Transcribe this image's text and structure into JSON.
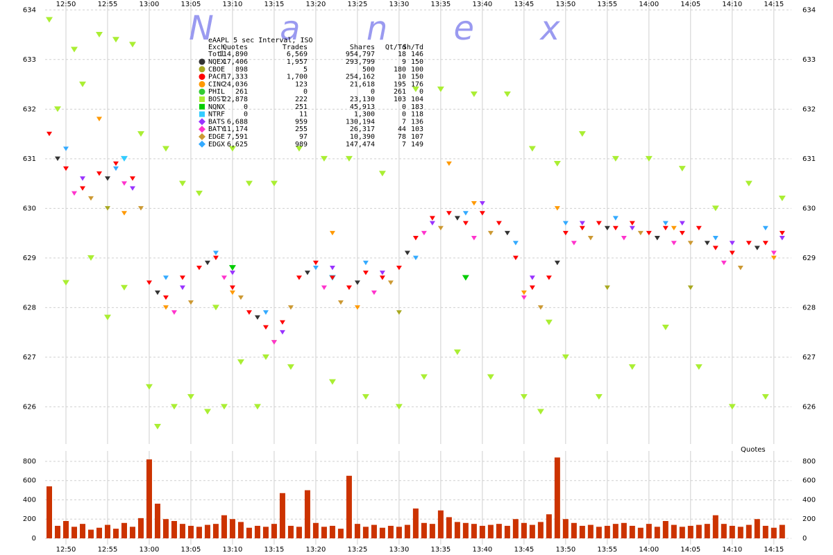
{
  "chart_data": [
    {
      "type": "scatter",
      "title": "eAAPL 5 sec Interval, ISO",
      "watermark": "N a n e x",
      "xlim": [
        767.5,
        857.1
      ],
      "xticks": [
        {
          "value": 770,
          "label": "12:50"
        },
        {
          "value": 775,
          "label": "12:55"
        },
        {
          "value": 780,
          "label": "13:00"
        },
        {
          "value": 785,
          "label": "13:05"
        },
        {
          "value": 790,
          "label": "13:10"
        },
        {
          "value": 795,
          "label": "13:15"
        },
        {
          "value": 800,
          "label": "13:20"
        },
        {
          "value": 805,
          "label": "13:25"
        },
        {
          "value": 810,
          "label": "13:30"
        },
        {
          "value": 815,
          "label": "13:35"
        },
        {
          "value": 820,
          "label": "13:40"
        },
        {
          "value": 825,
          "label": "13:45"
        },
        {
          "value": 830,
          "label": "13:50"
        },
        {
          "value": 835,
          "label": "13:55"
        },
        {
          "value": 840,
          "label": "14:00"
        },
        {
          "value": 845,
          "label": "14:05"
        },
        {
          "value": 850,
          "label": "14:10"
        },
        {
          "value": 855,
          "label": "14:15"
        }
      ],
      "ylim": [
        625.25,
        634.2
      ],
      "yticks": [
        626,
        627,
        628,
        629,
        630,
        631,
        632,
        633,
        634
      ],
      "grid": true,
      "table_header": [
        "Exch",
        "Quotes",
        "Trades",
        "Shares",
        "Qt/Td",
        "Sh/Td"
      ],
      "table_total": [
        "Totl",
        "114,890",
        "6,569",
        "954,797",
        "18",
        "146"
      ],
      "series": [
        {
          "name": "NQEX",
          "color": "#333333",
          "marker": "circle",
          "stats": [
            "17,406",
            "1,957",
            "293,799",
            "9",
            "150"
          ],
          "x": [
            769,
            775,
            781,
            787,
            793,
            799,
            805,
            811,
            817,
            823,
            829,
            835,
            841,
            847,
            853
          ],
          "values": [
            631.0,
            630.6,
            628.3,
            628.9,
            627.8,
            628.7,
            628.5,
            629.1,
            629.8,
            629.5,
            628.9,
            629.6,
            629.4,
            629.3,
            629.2
          ]
        },
        {
          "name": "CBOE",
          "color": "#a8a820",
          "marker": "circle",
          "stats": [
            "898",
            "5",
            "500",
            "180",
            "100"
          ],
          "x": [
            775,
            795,
            810,
            835,
            845
          ],
          "values": [
            630.0,
            627.3,
            627.9,
            628.4,
            628.4
          ]
        },
        {
          "name": "PACF",
          "color": "#ff0000",
          "marker": "circle",
          "stats": [
            "17,333",
            "1,700",
            "254,162",
            "10",
            "150"
          ],
          "x": [
            768,
            770,
            772,
            774,
            776,
            778,
            780,
            782,
            784,
            786,
            788,
            790,
            792,
            794,
            796,
            798,
            800,
            802,
            804,
            806,
            808,
            810,
            812,
            814,
            816,
            818,
            820,
            822,
            824,
            826,
            828,
            830,
            832,
            834,
            836,
            838,
            840,
            842,
            844,
            846,
            848,
            850,
            852,
            854,
            856
          ],
          "values": [
            631.5,
            630.8,
            630.4,
            630.7,
            630.9,
            630.6,
            628.5,
            628.2,
            628.6,
            628.8,
            629.0,
            628.4,
            627.9,
            627.6,
            627.7,
            628.6,
            628.9,
            628.6,
            628.4,
            628.7,
            628.6,
            628.8,
            629.4,
            629.8,
            629.9,
            629.7,
            629.9,
            629.7,
            629.0,
            628.4,
            628.6,
            629.5,
            629.6,
            629.7,
            629.6,
            629.7,
            629.5,
            629.6,
            629.5,
            629.6,
            629.2,
            629.1,
            629.3,
            629.3,
            629.5
          ]
        },
        {
          "name": "CINC",
          "color": "#ff9900",
          "marker": "circle",
          "stats": [
            "24,036",
            "123",
            "21,618",
            "195",
            "176"
          ],
          "x": [
            774,
            777,
            782,
            790,
            802,
            805,
            816,
            819,
            825,
            829,
            843,
            855
          ],
          "values": [
            631.8,
            629.9,
            628.0,
            628.3,
            629.5,
            628.0,
            630.9,
            630.1,
            628.3,
            630.0,
            629.6,
            629.0
          ]
        },
        {
          "name": "PHIL",
          "color": "#33cc33",
          "marker": "circle",
          "stats": [
            "261",
            "0",
            "0",
            "261",
            "0"
          ],
          "x": [],
          "values": []
        },
        {
          "name": "BOST",
          "color": "#aaee33",
          "marker": "square",
          "stats": [
            "22,878",
            "222",
            "23,130",
            "103",
            "104"
          ],
          "x": [
            768,
            769,
            770,
            771,
            772,
            773,
            774,
            775,
            776,
            777,
            778,
            779,
            780,
            781,
            782,
            783,
            784,
            785,
            786,
            787,
            788,
            789,
            790,
            791,
            792,
            793,
            794,
            795,
            797,
            798,
            801,
            802,
            804,
            806,
            808,
            810,
            812,
            813,
            815,
            817,
            819,
            821,
            823,
            825,
            826,
            827,
            828,
            829,
            830,
            832,
            834,
            836,
            838,
            840,
            842,
            844,
            846,
            848,
            850,
            852,
            854,
            856
          ],
          "values": [
            633.8,
            632.0,
            628.5,
            633.2,
            632.5,
            629.0,
            633.5,
            627.8,
            633.4,
            628.4,
            633.3,
            631.5,
            626.4,
            625.6,
            631.2,
            626.0,
            630.5,
            626.2,
            630.3,
            625.9,
            628.0,
            626.0,
            631.2,
            626.9,
            630.5,
            626.0,
            627.0,
            630.5,
            626.8,
            631.2,
            631.0,
            626.5,
            631.0,
            626.2,
            630.7,
            626.0,
            632.4,
            626.6,
            632.4,
            627.1,
            632.3,
            626.6,
            632.3,
            626.2,
            631.2,
            625.9,
            627.7,
            630.9,
            627.0,
            631.5,
            626.2,
            631.0,
            626.8,
            631.0,
            627.6,
            630.8,
            626.8,
            630.0,
            626.0,
            630.5,
            626.2,
            630.2
          ]
        },
        {
          "name": "NQNX",
          "color": "#00cc00",
          "marker": "square",
          "stats": [
            "0",
            "251",
            "45,913",
            "0",
            "183"
          ],
          "x": [
            790,
            818
          ],
          "values": [
            628.8,
            628.6
          ]
        },
        {
          "name": "NTRF",
          "color": "#33ccff",
          "marker": "square",
          "stats": [
            "0",
            "11",
            "1,300",
            "0",
            "118"
          ],
          "x": [
            777,
            802
          ],
          "values": [
            631.0,
            628.6
          ]
        },
        {
          "name": "BATS",
          "color": "#9933ff",
          "marker": "diamond",
          "stats": [
            "6,688",
            "959",
            "130,194",
            "7",
            "136"
          ],
          "x": [
            772,
            778,
            784,
            790,
            796,
            802,
            808,
            814,
            820,
            826,
            832,
            838,
            844,
            850,
            856
          ],
          "values": [
            630.6,
            630.4,
            628.4,
            628.7,
            627.5,
            628.8,
            628.7,
            629.7,
            630.1,
            628.6,
            629.7,
            629.6,
            629.7,
            629.3,
            629.4
          ]
        },
        {
          "name": "BATY",
          "color": "#ff33cc",
          "marker": "diamond",
          "stats": [
            "11,174",
            "255",
            "26,317",
            "44",
            "103"
          ],
          "x": [
            771,
            777,
            783,
            789,
            795,
            801,
            807,
            813,
            819,
            825,
            831,
            837,
            843,
            849,
            855
          ],
          "values": [
            630.3,
            630.5,
            627.9,
            628.6,
            627.3,
            628.4,
            628.3,
            629.5,
            629.4,
            628.2,
            629.3,
            629.4,
            629.3,
            628.9,
            629.1
          ]
        },
        {
          "name": "EDGE",
          "color": "#cc9933",
          "marker": "diamond",
          "stats": [
            "7,591",
            "97",
            "10,390",
            "78",
            "107"
          ],
          "x": [
            773,
            779,
            785,
            791,
            797,
            803,
            809,
            815,
            821,
            827,
            833,
            839,
            845,
            851
          ],
          "values": [
            630.2,
            630.0,
            628.1,
            628.2,
            628.0,
            628.1,
            628.5,
            629.6,
            629.5,
            628.0,
            629.4,
            629.5,
            629.3,
            628.8
          ]
        },
        {
          "name": "EDGX",
          "color": "#33aaff",
          "marker": "diamond",
          "stats": [
            "6,625",
            "989",
            "147,474",
            "7",
            "149"
          ],
          "x": [
            770,
            776,
            782,
            788,
            794,
            800,
            806,
            812,
            818,
            824,
            830,
            836,
            842,
            848,
            854
          ],
          "values": [
            631.2,
            630.8,
            628.6,
            629.1,
            627.9,
            628.8,
            628.9,
            629.0,
            629.9,
            629.3,
            629.7,
            629.8,
            629.7,
            629.4,
            629.6
          ]
        }
      ]
    },
    {
      "type": "bar",
      "label": "Quotes",
      "color": "#cc3300",
      "xlim": [
        767.5,
        857.1
      ],
      "xticks": [
        {
          "value": 770,
          "label": "12:50"
        },
        {
          "value": 775,
          "label": "12:55"
        },
        {
          "value": 780,
          "label": "13:00"
        },
        {
          "value": 785,
          "label": "13:05"
        },
        {
          "value": 790,
          "label": "13:10"
        },
        {
          "value": 795,
          "label": "13:15"
        },
        {
          "value": 800,
          "label": "13:20"
        },
        {
          "value": 805,
          "label": "13:25"
        },
        {
          "value": 810,
          "label": "13:30"
        },
        {
          "value": 815,
          "label": "13:35"
        },
        {
          "value": 820,
          "label": "13:40"
        },
        {
          "value": 825,
          "label": "13:45"
        },
        {
          "value": 830,
          "label": "13:50"
        },
        {
          "value": 835,
          "label": "13:55"
        },
        {
          "value": 840,
          "label": "14:00"
        },
        {
          "value": 845,
          "label": "14:05"
        },
        {
          "value": 850,
          "label": "14:10"
        },
        {
          "value": 855,
          "label": "14:15"
        }
      ],
      "ylim": [
        -65,
        908
      ],
      "yticks": [
        0,
        200,
        400,
        600,
        800
      ],
      "grid": true,
      "x": [
        768,
        769,
        770,
        771,
        772,
        773,
        774,
        775,
        776,
        777,
        778,
        779,
        780,
        781,
        782,
        783,
        784,
        785,
        786,
        787,
        788,
        789,
        790,
        791,
        792,
        793,
        794,
        795,
        796,
        797,
        798,
        799,
        800,
        801,
        802,
        803,
        804,
        805,
        806,
        807,
        808,
        809,
        810,
        811,
        812,
        813,
        814,
        815,
        816,
        817,
        818,
        819,
        820,
        821,
        822,
        823,
        824,
        825,
        826,
        827,
        828,
        829,
        830,
        831,
        832,
        833,
        834,
        835,
        836,
        837,
        838,
        839,
        840,
        841,
        842,
        843,
        844,
        845,
        846,
        847,
        848,
        849,
        850,
        851,
        852,
        853,
        854,
        855,
        856
      ],
      "values": [
        540,
        130,
        180,
        120,
        150,
        90,
        110,
        140,
        100,
        160,
        120,
        210,
        820,
        360,
        200,
        180,
        150,
        130,
        120,
        140,
        150,
        240,
        200,
        170,
        110,
        130,
        120,
        150,
        470,
        130,
        120,
        500,
        160,
        120,
        130,
        100,
        650,
        150,
        120,
        140,
        110,
        130,
        120,
        140,
        310,
        160,
        150,
        290,
        220,
        170,
        160,
        150,
        130,
        140,
        150,
        130,
        200,
        160,
        140,
        170,
        250,
        840,
        200,
        160,
        130,
        140,
        120,
        130,
        150,
        160,
        130,
        110,
        150,
        120,
        180,
        140,
        120,
        130,
        140,
        150,
        240,
        150,
        130,
        120,
        140,
        200,
        130,
        110,
        140
      ]
    }
  ]
}
